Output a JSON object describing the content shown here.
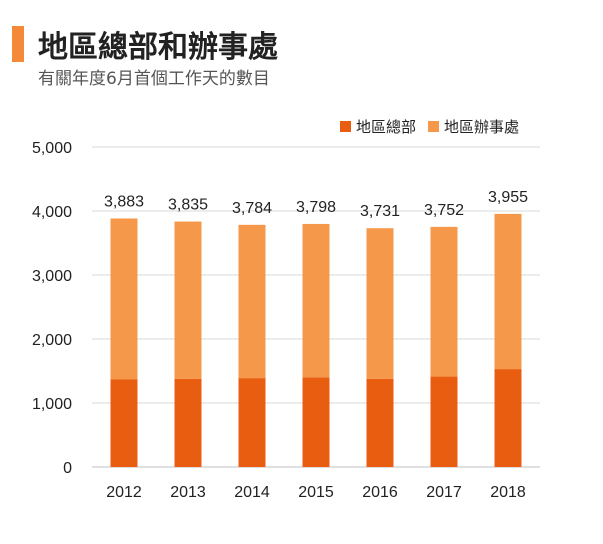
{
  "header": {
    "title": "地區總部和辦事處",
    "subtitle": "有關年度6月首個工作天的數目"
  },
  "colors": {
    "accent": "#f5893a",
    "series_dark": "#e85d10",
    "series_light": "#f5984a",
    "grid": "#d9d9d9"
  },
  "chart_data": {
    "type": "bar",
    "stacked": true,
    "categories": [
      "2012",
      "2013",
      "2014",
      "2015",
      "2016",
      "2017",
      "2018"
    ],
    "series": [
      {
        "name": "地區總部",
        "values": [
          1367,
          1379,
          1389,
          1401,
          1379,
          1413,
          1530
        ]
      },
      {
        "name": "地區辦事處",
        "values": [
          2516,
          2456,
          2395,
          2397,
          2352,
          2339,
          2425
        ]
      }
    ],
    "totals": [
      "3,883",
      "3,835",
      "3,784",
      "3,798",
      "3,731",
      "3,752",
      "3,955"
    ],
    "ylim": [
      0,
      5000
    ],
    "yticks": [
      "0",
      "1,000",
      "2,000",
      "3,000",
      "4,000",
      "5,000"
    ],
    "grid": true,
    "legend_position": "top-right"
  }
}
